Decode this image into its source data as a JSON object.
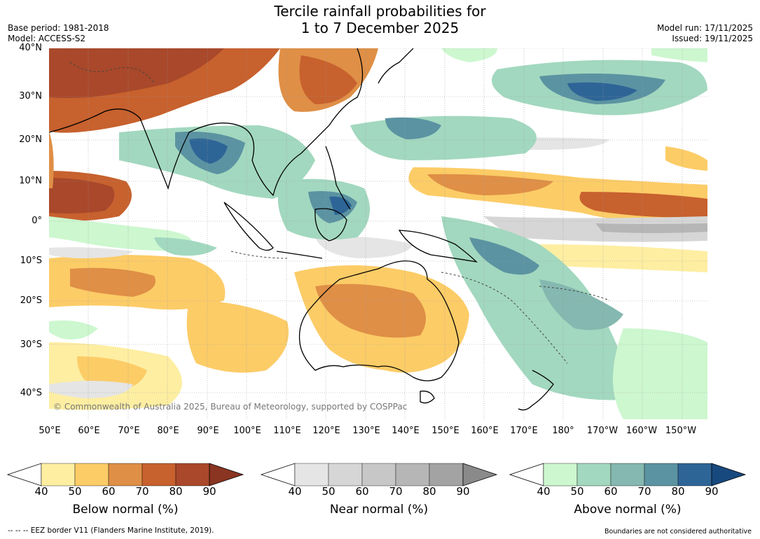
{
  "header": {
    "title_line1": "Tercile rainfall probabilities for",
    "title_line2": "1 to 7 December 2025",
    "base_period": "Base period: 1981-2018",
    "model": "Model: ACCESS-S2",
    "model_run": "Model run: 17/11/2025",
    "issued": "Issued: 19/11/2025"
  },
  "map": {
    "lat_labels": [
      "40°N",
      "30°N",
      "20°N",
      "10°N",
      "0°",
      "10°S",
      "20°S",
      "30°S",
      "40°S"
    ],
    "lon_labels": [
      "50°E",
      "60°E",
      "70°E",
      "80°E",
      "90°E",
      "100°E",
      "110°E",
      "120°E",
      "130°E",
      "140°E",
      "150°E",
      "160°E",
      "170°E",
      "180°",
      "170°W",
      "160°W",
      "150°W"
    ],
    "copyright": "© Commonwealth of Australia 2025, Bureau of Meteorology, supported by COSPPac"
  },
  "colorbars": [
    {
      "title": "Below normal (%)",
      "ticks": [
        "40",
        "50",
        "60",
        "70",
        "80",
        "90"
      ],
      "colors": [
        "#fdeea2",
        "#fccc67",
        "#df8f46",
        "#c7612e",
        "#a9482a",
        "#8a3522"
      ]
    },
    {
      "title": "Near normal (%)",
      "ticks": [
        "40",
        "50",
        "60",
        "70",
        "80",
        "90"
      ],
      "colors": [
        "#e5e5e5",
        "#d6d6d6",
        "#c7c7c7",
        "#b6b6b6",
        "#a3a3a3",
        "#8a8a8a"
      ]
    },
    {
      "title": "Above normal (%)",
      "ticks": [
        "40",
        "50",
        "60",
        "70",
        "80",
        "90"
      ],
      "colors": [
        "#cdf7cf",
        "#a2d8bf",
        "#84b8b0",
        "#5b93a2",
        "#2e6597",
        "#18497e"
      ]
    }
  ],
  "footer": {
    "eez_note": "--  --  -- EEZ border V11 (Flanders Marine Institute, 2019).",
    "boundaries_note": "Boundaries are not considered authoritative"
  }
}
